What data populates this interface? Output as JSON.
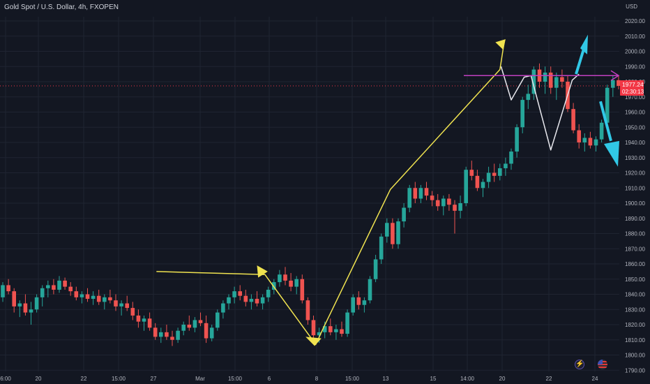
{
  "header": {
    "title": "Gold Spot / U.S. Dollar, 4h, FXOPEN",
    "currency": "USD"
  },
  "price_scale": {
    "labels": [
      "2020.00",
      "2010.00",
      "2000.00",
      "1990.00",
      "1980.00",
      "1970.00",
      "1960.00",
      "1950.00",
      "1940.00",
      "1930.00",
      "1920.00",
      "1910.00",
      "1900.00",
      "1890.00",
      "1880.00",
      "1870.00",
      "1860.00",
      "1850.00",
      "1840.00",
      "1830.00",
      "1820.00",
      "1810.00",
      "1800.00",
      "1790.00"
    ],
    "last_price": "1977.24",
    "countdown": "02:30:13",
    "colors": {
      "up": "#26a69a",
      "down": "#ef5350",
      "last_price_bg": "#f23645"
    }
  },
  "time_scale": {
    "labels": [
      "6:00",
      "20",
      "22",
      "15:00",
      "27",
      "Mar",
      "15:00",
      "6",
      "8",
      "15:00",
      "13",
      "15",
      "14:00",
      "20",
      "22",
      "24"
    ]
  },
  "annotations": {
    "yellow_path_color": "#f0e350",
    "white_path_color": "#e8e8ee",
    "resistance_line_color": "#c040c0",
    "forecast_arrow_color": "#31c8e6",
    "resistance_level": 1984
  },
  "badges": {
    "flash_icon": "lightning-icon",
    "region_icon": "us-flag-icon"
  },
  "chart_data": {
    "type": "candlestick",
    "title": "Gold Spot / U.S. Dollar, 4h, FXOPEN",
    "ylabel": "USD",
    "ylim": [
      1787,
      2027
    ],
    "ohlc": [
      [
        1838,
        1848,
        1835,
        1846
      ],
      [
        1846,
        1850,
        1840,
        1842
      ],
      [
        1842,
        1844,
        1828,
        1832
      ],
      [
        1832,
        1836,
        1825,
        1834
      ],
      [
        1834,
        1840,
        1826,
        1828
      ],
      [
        1828,
        1835,
        1820,
        1830
      ],
      [
        1830,
        1840,
        1828,
        1838
      ],
      [
        1838,
        1846,
        1832,
        1844
      ],
      [
        1844,
        1849,
        1838,
        1846
      ],
      [
        1846,
        1850,
        1840,
        1843
      ],
      [
        1843,
        1852,
        1841,
        1849
      ],
      [
        1849,
        1851,
        1843,
        1845
      ],
      [
        1845,
        1848,
        1839,
        1842
      ],
      [
        1842,
        1845,
        1836,
        1838
      ],
      [
        1838,
        1842,
        1834,
        1840
      ],
      [
        1840,
        1844,
        1835,
        1837
      ],
      [
        1837,
        1842,
        1833,
        1839
      ],
      [
        1839,
        1843,
        1833,
        1835
      ],
      [
        1835,
        1840,
        1830,
        1838
      ],
      [
        1838,
        1843,
        1834,
        1836
      ],
      [
        1836,
        1840,
        1829,
        1832
      ],
      [
        1832,
        1836,
        1826,
        1834
      ],
      [
        1834,
        1839,
        1829,
        1831
      ],
      [
        1831,
        1835,
        1823,
        1826
      ],
      [
        1826,
        1830,
        1818,
        1822
      ],
      [
        1822,
        1826,
        1816,
        1824
      ],
      [
        1824,
        1828,
        1816,
        1818
      ],
      [
        1818,
        1821,
        1810,
        1812
      ],
      [
        1812,
        1818,
        1808,
        1815
      ],
      [
        1815,
        1820,
        1810,
        1812
      ],
      [
        1812,
        1816,
        1806,
        1810
      ],
      [
        1810,
        1818,
        1808,
        1816
      ],
      [
        1816,
        1822,
        1813,
        1820
      ],
      [
        1820,
        1826,
        1816,
        1818
      ],
      [
        1818,
        1825,
        1815,
        1823
      ],
      [
        1823,
        1828,
        1819,
        1821
      ],
      [
        1821,
        1826,
        1808,
        1811
      ],
      [
        1811,
        1820,
        1809,
        1818
      ],
      [
        1818,
        1830,
        1816,
        1828
      ],
      [
        1828,
        1836,
        1824,
        1834
      ],
      [
        1834,
        1840,
        1830,
        1838
      ],
      [
        1838,
        1845,
        1834,
        1842
      ],
      [
        1842,
        1846,
        1836,
        1839
      ],
      [
        1839,
        1843,
        1832,
        1835
      ],
      [
        1835,
        1840,
        1830,
        1837
      ],
      [
        1837,
        1842,
        1832,
        1834
      ],
      [
        1834,
        1840,
        1830,
        1838
      ],
      [
        1838,
        1845,
        1835,
        1843
      ],
      [
        1843,
        1850,
        1840,
        1848
      ],
      [
        1848,
        1856,
        1845,
        1853
      ],
      [
        1853,
        1858,
        1846,
        1849
      ],
      [
        1849,
        1854,
        1842,
        1845
      ],
      [
        1845,
        1852,
        1840,
        1850
      ],
      [
        1850,
        1853,
        1834,
        1836
      ],
      [
        1836,
        1838,
        1820,
        1823
      ],
      [
        1823,
        1826,
        1810,
        1813
      ],
      [
        1813,
        1818,
        1808,
        1815
      ],
      [
        1815,
        1822,
        1811,
        1819
      ],
      [
        1819,
        1824,
        1813,
        1815
      ],
      [
        1815,
        1820,
        1810,
        1817
      ],
      [
        1817,
        1822,
        1812,
        1814
      ],
      [
        1814,
        1830,
        1812,
        1828
      ],
      [
        1828,
        1840,
        1826,
        1838
      ],
      [
        1838,
        1842,
        1830,
        1833
      ],
      [
        1833,
        1838,
        1828,
        1836
      ],
      [
        1836,
        1852,
        1834,
        1850
      ],
      [
        1850,
        1866,
        1848,
        1863
      ],
      [
        1863,
        1880,
        1860,
        1878
      ],
      [
        1878,
        1890,
        1874,
        1887
      ],
      [
        1887,
        1890,
        1870,
        1873
      ],
      [
        1873,
        1890,
        1870,
        1888
      ],
      [
        1888,
        1900,
        1884,
        1897
      ],
      [
        1897,
        1912,
        1894,
        1910
      ],
      [
        1910,
        1914,
        1900,
        1903
      ],
      [
        1903,
        1912,
        1900,
        1910
      ],
      [
        1910,
        1914,
        1902,
        1905
      ],
      [
        1905,
        1908,
        1898,
        1902
      ],
      [
        1902,
        1906,
        1895,
        1898
      ],
      [
        1898,
        1905,
        1892,
        1903
      ],
      [
        1903,
        1906,
        1895,
        1899
      ],
      [
        1899,
        1902,
        1880,
        1895
      ],
      [
        1895,
        1905,
        1890,
        1900
      ],
      [
        1900,
        1924,
        1898,
        1922
      ],
      [
        1922,
        1928,
        1915,
        1918
      ],
      [
        1918,
        1922,
        1908,
        1910
      ],
      [
        1910,
        1916,
        1904,
        1914
      ],
      [
        1914,
        1924,
        1910,
        1920
      ],
      [
        1920,
        1926,
        1914,
        1918
      ],
      [
        1918,
        1926,
        1915,
        1923
      ],
      [
        1923,
        1930,
        1918,
        1926
      ],
      [
        1926,
        1936,
        1922,
        1934
      ],
      [
        1934,
        1952,
        1930,
        1950
      ],
      [
        1950,
        1970,
        1946,
        1968
      ],
      [
        1968,
        1978,
        1962,
        1972
      ],
      [
        1972,
        1990,
        1968,
        1988
      ],
      [
        1988,
        1992,
        1976,
        1980
      ],
      [
        1980,
        1990,
        1972,
        1986
      ],
      [
        1986,
        1990,
        1972,
        1976
      ],
      [
        1976,
        1986,
        1968,
        1983
      ],
      [
        1983,
        1988,
        1976,
        1980
      ],
      [
        1980,
        1984,
        1960,
        1962
      ],
      [
        1962,
        1966,
        1946,
        1948
      ],
      [
        1948,
        1952,
        1936,
        1940
      ],
      [
        1940,
        1946,
        1934,
        1943
      ],
      [
        1943,
        1947,
        1936,
        1938
      ],
      [
        1938,
        1944,
        1934,
        1942
      ],
      [
        1942,
        1955,
        1940,
        1953
      ],
      [
        1953,
        1978,
        1950,
        1976
      ],
      [
        1976,
        1984,
        1970,
        1981
      ],
      [
        1981,
        1984,
        1975,
        1977.24
      ]
    ],
    "price_axis_labels": [
      2020,
      2010,
      2000,
      1990,
      1980,
      1970,
      1960,
      1950,
      1940,
      1930,
      1920,
      1910,
      1900,
      1890,
      1880,
      1870,
      1860,
      1850,
      1840,
      1830,
      1820,
      1810,
      1800,
      1790
    ],
    "time_axis_labels": [
      "6:00",
      "20",
      "22",
      "15:00",
      "27",
      "Mar",
      "15:00",
      "6",
      "8",
      "15:00",
      "13",
      "15",
      "14:00",
      "20",
      "22",
      "24"
    ],
    "last_price": 1977.24,
    "resistance_level": 1984,
    "yellow_swing_path": [
      [
        1810,
        1855
      ],
      [
        1836,
        1853
      ],
      [
        1813,
        1807
      ],
      [
        1825,
        1819
      ],
      [
        1903,
        1909
      ],
      [
        1946,
        1988
      ],
      [
        1970,
        2007
      ]
    ],
    "white_swing_path": [
      [
        1983,
        1990
      ],
      [
        1988,
        1968
      ],
      [
        1988,
        1983
      ],
      [
        1994,
        1984
      ],
      [
        1952,
        1935
      ],
      [
        1994,
        1940
      ],
      [
        1978,
        1981
      ]
    ],
    "forecast_up_target": 2010,
    "forecast_down_target": 1925
  }
}
